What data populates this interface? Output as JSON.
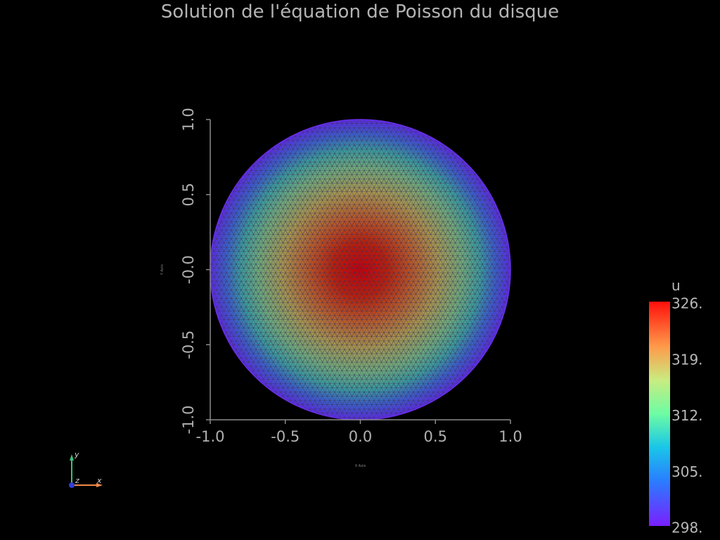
{
  "chart_data": {
    "type": "heatmap",
    "title": "Solution de l'équation de Poisson du disque",
    "xlabel": "X Axis",
    "ylabel": "Y Axis",
    "xlim": [
      -1.0,
      1.0
    ],
    "ylim": [
      -1.0,
      1.0
    ],
    "x_ticks": [
      "-1.0",
      "-0.5",
      "0.0",
      "0.5",
      "1.0"
    ],
    "y_ticks": [
      "-1.0",
      "-0.5",
      "-0.0",
      "0.5",
      "1.0"
    ],
    "domain": "unit disk",
    "mesh": "triangular",
    "field": {
      "name": "u",
      "center_value": 326,
      "boundary_value": 298,
      "profile": "radially symmetric, maximum at center, decreasing to boundary"
    },
    "colorbar": {
      "title": "u",
      "range": [
        298,
        326
      ],
      "tick_labels": [
        "326.",
        "319.",
        "312.",
        "305.",
        "298."
      ],
      "colormap": "rainbow"
    }
  },
  "orientation_widget": {
    "axes": [
      "x",
      "y",
      "z"
    ],
    "colors": {
      "x": "#f08a4a",
      "y": "#3dbf7a",
      "z": "#2f3fd8"
    }
  },
  "colors": {
    "background": "#000000",
    "axes": "#8a8a8a",
    "text": "#b0b0b0"
  }
}
